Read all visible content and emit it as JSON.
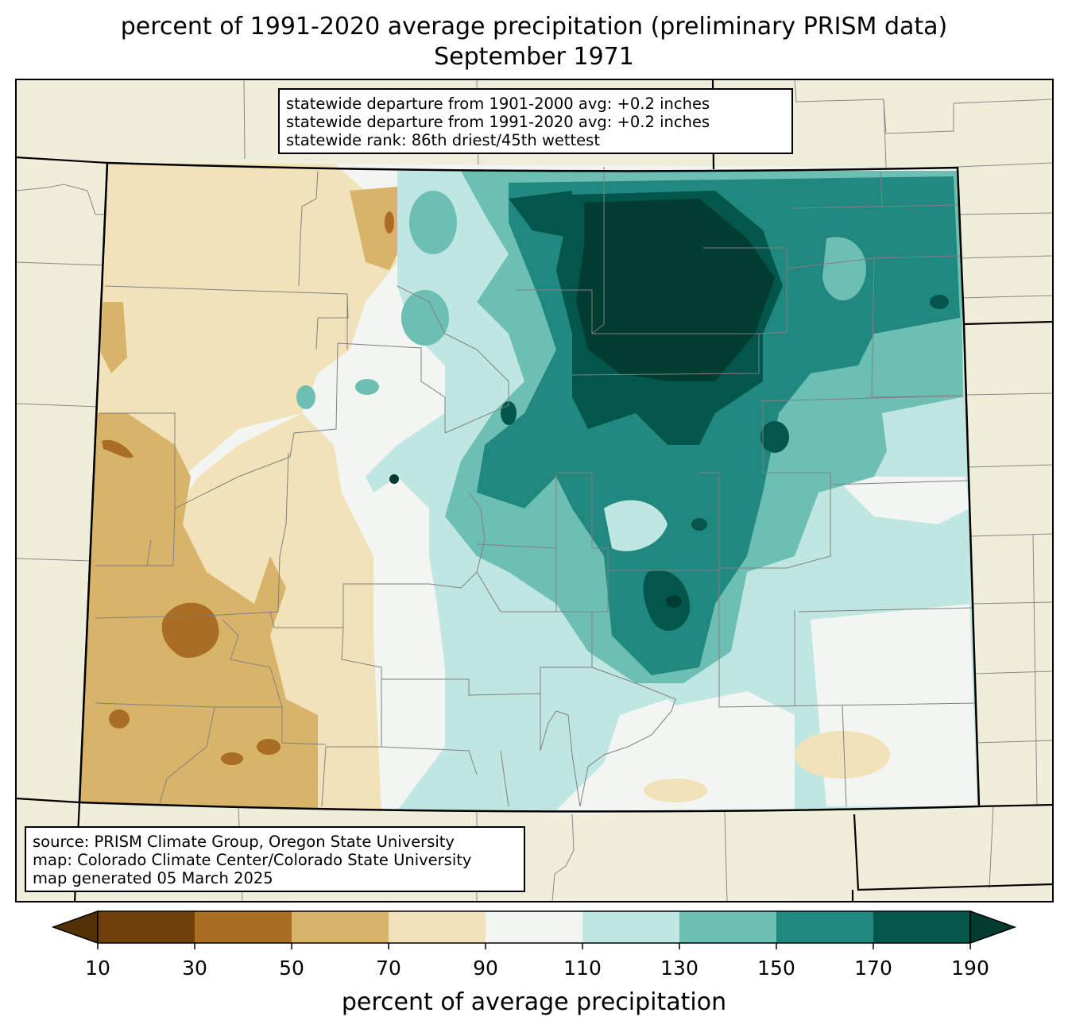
{
  "title": {
    "line1": "percent of 1991-2020 average precipitation (preliminary PRISM data)",
    "line2": "September 1971"
  },
  "stats": {
    "line1": "statewide departure from 1901-2000 avg: +0.2 inches",
    "line2": "statewide departure from 1991-2020 avg: +0.2 inches",
    "line3": "statewide rank: 86th driest/45th wettest"
  },
  "credits": {
    "line1": "source: PRISM Climate Group, Oregon State University",
    "line2": "map: Colorado Climate Center/Colorado State University",
    "line3": "map generated 05 March 2025"
  },
  "colorbar": {
    "label": "percent of average precipitation",
    "ticks": [
      "10",
      "30",
      "50",
      "70",
      "90",
      "110",
      "130",
      "150",
      "170",
      "190"
    ],
    "colors": {
      "under": "#543005",
      "c10_30": "#6f3f0c",
      "c30_50": "#a96d23",
      "c50_70": "#d8b46a",
      "c70_90": "#f2e2b9",
      "c90_110": "#f3f5f3",
      "c110_130": "#bfe6e0",
      "c130_150": "#6cbfb2",
      "c150_170": "#218880",
      "c170_190": "#02564b",
      "over": "#003c30"
    }
  },
  "map_colors": {
    "land": "#efeedb",
    "county_lines": "#888888",
    "state_lines": "#000000"
  }
}
